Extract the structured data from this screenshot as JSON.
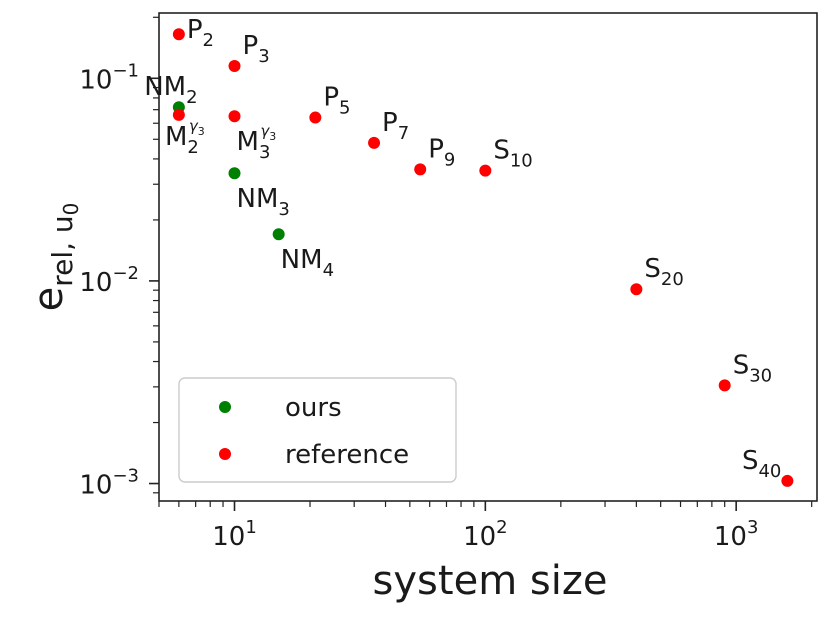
{
  "chart_data": {
    "type": "scatter",
    "title": "",
    "xlabel": "system size",
    "ylabel": {
      "base": "e",
      "sub": "rel, u",
      "subsub": "0"
    },
    "xscale": "log",
    "yscale": "log",
    "xlim": [
      5,
      2100
    ],
    "ylim": [
      0.00082,
      0.21
    ],
    "x_ticks": [
      {
        "value": 10,
        "base": "10",
        "exp": "1"
      },
      {
        "value": 100,
        "base": "10",
        "exp": "2"
      },
      {
        "value": 1000,
        "base": "10",
        "exp": "3"
      }
    ],
    "y_ticks": [
      {
        "value": 0.1,
        "base": "10",
        "exp": "−1"
      },
      {
        "value": 0.01,
        "base": "10",
        "exp": "−2"
      },
      {
        "value": 0.001,
        "base": "10",
        "exp": "−3"
      }
    ],
    "legend": {
      "placement": "lower-left",
      "entries": [
        {
          "name": "ours",
          "color": "#008000"
        },
        {
          "name": "reference",
          "color": "#ff0000"
        }
      ]
    },
    "series": [
      {
        "name": "ours",
        "color": "#008000",
        "points": [
          {
            "x": 6,
            "y": 0.072,
            "label": {
              "base": "NM",
              "sub": "2"
            },
            "pos": "above"
          },
          {
            "x": 10,
            "y": 0.034,
            "label": {
              "base": "NM",
              "sub": "3"
            },
            "pos": "below-right"
          },
          {
            "x": 15,
            "y": 0.017,
            "label": {
              "base": "NM",
              "sub": "4"
            },
            "pos": "below-right"
          }
        ]
      },
      {
        "name": "reference",
        "color": "#ff0000",
        "points": [
          {
            "x": 6,
            "y": 0.165,
            "label": {
              "base": "P",
              "sub": "2"
            },
            "pos": "right"
          },
          {
            "x": 10,
            "y": 0.115,
            "label": {
              "base": "P",
              "sub": "3"
            },
            "pos": "above-right"
          },
          {
            "x": 6,
            "y": 0.066,
            "label": {
              "base": "M",
              "sub": "2",
              "sup": "γ",
              "supsub": "3"
            },
            "pos": "below-left"
          },
          {
            "x": 10,
            "y": 0.065,
            "label": {
              "base": "M",
              "sub": "3",
              "sup": "γ",
              "supsub": "3"
            },
            "pos": "below-right"
          },
          {
            "x": 21,
            "y": 0.064,
            "label": {
              "base": "P",
              "sub": "5"
            },
            "pos": "above-right"
          },
          {
            "x": 36,
            "y": 0.048,
            "label": {
              "base": "P",
              "sub": "7"
            },
            "pos": "above-right"
          },
          {
            "x": 55,
            "y": 0.0355,
            "label": {
              "base": "P",
              "sub": "9"
            },
            "pos": "above-right"
          },
          {
            "x": 100,
            "y": 0.035,
            "label": {
              "base": "S",
              "sub": "10"
            },
            "pos": "above-right"
          },
          {
            "x": 400,
            "y": 0.0091,
            "label": {
              "base": "S",
              "sub": "20"
            },
            "pos": "above-right"
          },
          {
            "x": 900,
            "y": 0.00305,
            "label": {
              "base": "S",
              "sub": "30"
            },
            "pos": "above-right"
          },
          {
            "x": 1600,
            "y": 0.00103,
            "label": {
              "base": "S",
              "sub": "40"
            },
            "pos": "above-left"
          }
        ]
      }
    ]
  }
}
